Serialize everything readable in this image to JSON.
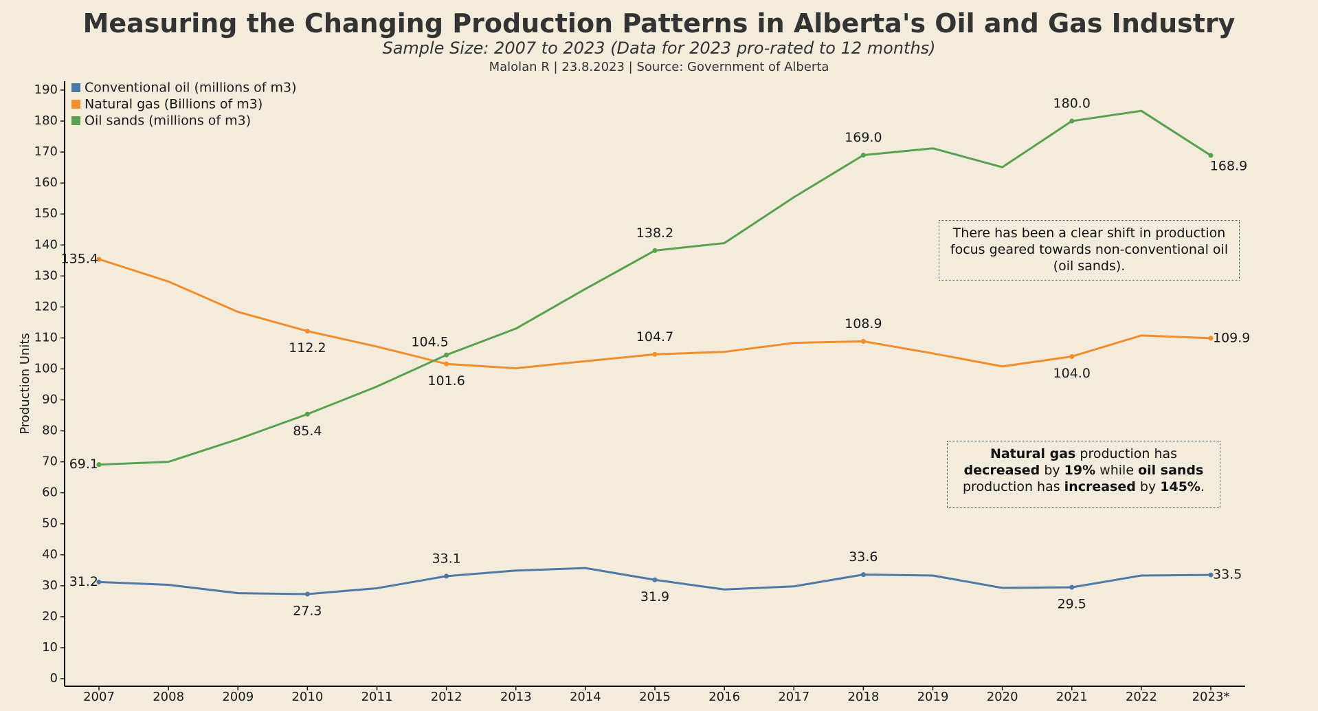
{
  "header": {
    "title": "Measuring the Changing Production Patterns in Alberta's Oil and Gas Industry",
    "subtitle": "Sample Size: 2007 to 2023 (Data for 2023 pro-rated to 12 months)",
    "byline": "Malolan R | 23.8.2023  | Source: Government of Alberta"
  },
  "callouts": {
    "shift": "There has been a clear shift in production focus geared towards non-conventional oil (oil sands).",
    "change_parts": [
      {
        "text": "Natural gas",
        "bold": true
      },
      {
        "text": " production has ",
        "bold": false
      },
      {
        "text": "decreased",
        "bold": true
      },
      {
        "text": " by ",
        "bold": false
      },
      {
        "text": "19%",
        "bold": true
      },
      {
        "text": " while ",
        "bold": false
      },
      {
        "text": "oil sands",
        "bold": true
      },
      {
        "text": " production has ",
        "bold": false
      },
      {
        "text": "increased",
        "bold": true
      },
      {
        "text": " by ",
        "bold": false
      },
      {
        "text": "145%",
        "bold": true
      },
      {
        "text": ".",
        "bold": false
      }
    ]
  },
  "chart_data": {
    "type": "line",
    "title": "Measuring the Changing Production Patterns in Alberta's Oil and Gas Industry",
    "subtitle": "Sample Size: 2007 to 2023 (Data for 2023 pro-rated to 12 months)",
    "xlabel": "",
    "ylabel": "Production Units",
    "ylim": [
      0,
      190
    ],
    "yticks": [
      0,
      10,
      20,
      30,
      40,
      50,
      60,
      70,
      80,
      90,
      100,
      110,
      120,
      130,
      140,
      150,
      160,
      170,
      180,
      190
    ],
    "grid": false,
    "legend_position": "top-left",
    "categories": [
      "2007",
      "2008",
      "2009",
      "2010",
      "2011",
      "2012",
      "2013",
      "2014",
      "2015",
      "2016",
      "2017",
      "2018",
      "2019",
      "2020",
      "2021",
      "2022",
      "2023*"
    ],
    "series": [
      {
        "name": "Conventional oil (millions of m3)",
        "color": "#4e79a7",
        "values": [
          31.2,
          30.3,
          27.6,
          27.3,
          29.2,
          33.1,
          34.9,
          35.7,
          31.9,
          28.8,
          29.8,
          33.6,
          33.3,
          29.3,
          29.5,
          33.3,
          33.5
        ],
        "labels": [
          {
            "index": 0,
            "text": "31.2",
            "pos": "left"
          },
          {
            "index": 3,
            "text": "27.3",
            "pos": "below"
          },
          {
            "index": 5,
            "text": "33.1",
            "pos": "above"
          },
          {
            "index": 8,
            "text": "31.9",
            "pos": "below"
          },
          {
            "index": 11,
            "text": "33.6",
            "pos": "above"
          },
          {
            "index": 14,
            "text": "29.5",
            "pos": "below"
          },
          {
            "index": 16,
            "text": "33.5",
            "pos": "right"
          }
        ]
      },
      {
        "name": "Natural gas (Billions of m3)",
        "color": "#f28e2b",
        "values": [
          135.4,
          128.2,
          118.4,
          112.2,
          107.2,
          101.6,
          100.2,
          102.5,
          104.7,
          105.5,
          108.4,
          108.9,
          105.0,
          100.8,
          104.0,
          110.8,
          109.9
        ],
        "labels": [
          {
            "index": 0,
            "text": "135.4",
            "pos": "left"
          },
          {
            "index": 3,
            "text": "112.2",
            "pos": "below"
          },
          {
            "index": 5,
            "text": "101.6",
            "pos": "below"
          },
          {
            "index": 8,
            "text": "104.7",
            "pos": "above"
          },
          {
            "index": 11,
            "text": "108.9",
            "pos": "above"
          },
          {
            "index": 14,
            "text": "104.0",
            "pos": "below"
          },
          {
            "index": 16,
            "text": "109.9",
            "pos": "right"
          }
        ]
      },
      {
        "name": "Oil sands (millions of m3)",
        "color": "#59a14f",
        "values": [
          69.1,
          70.0,
          77.3,
          85.4,
          94.3,
          104.5,
          113.0,
          125.8,
          138.2,
          140.6,
          155.4,
          169.0,
          171.2,
          165.1,
          180.0,
          183.3,
          168.9
        ],
        "labels": [
          {
            "index": 0,
            "text": "69.1",
            "pos": "left"
          },
          {
            "index": 3,
            "text": "85.4",
            "pos": "below"
          },
          {
            "index": 5,
            "text": "104.5",
            "pos": "above-left"
          },
          {
            "index": 8,
            "text": "138.2",
            "pos": "above"
          },
          {
            "index": 11,
            "text": "169.0",
            "pos": "above"
          },
          {
            "index": 14,
            "text": "180.0",
            "pos": "above"
          },
          {
            "index": 16,
            "text": "168.9",
            "pos": "below-right"
          }
        ]
      }
    ]
  }
}
